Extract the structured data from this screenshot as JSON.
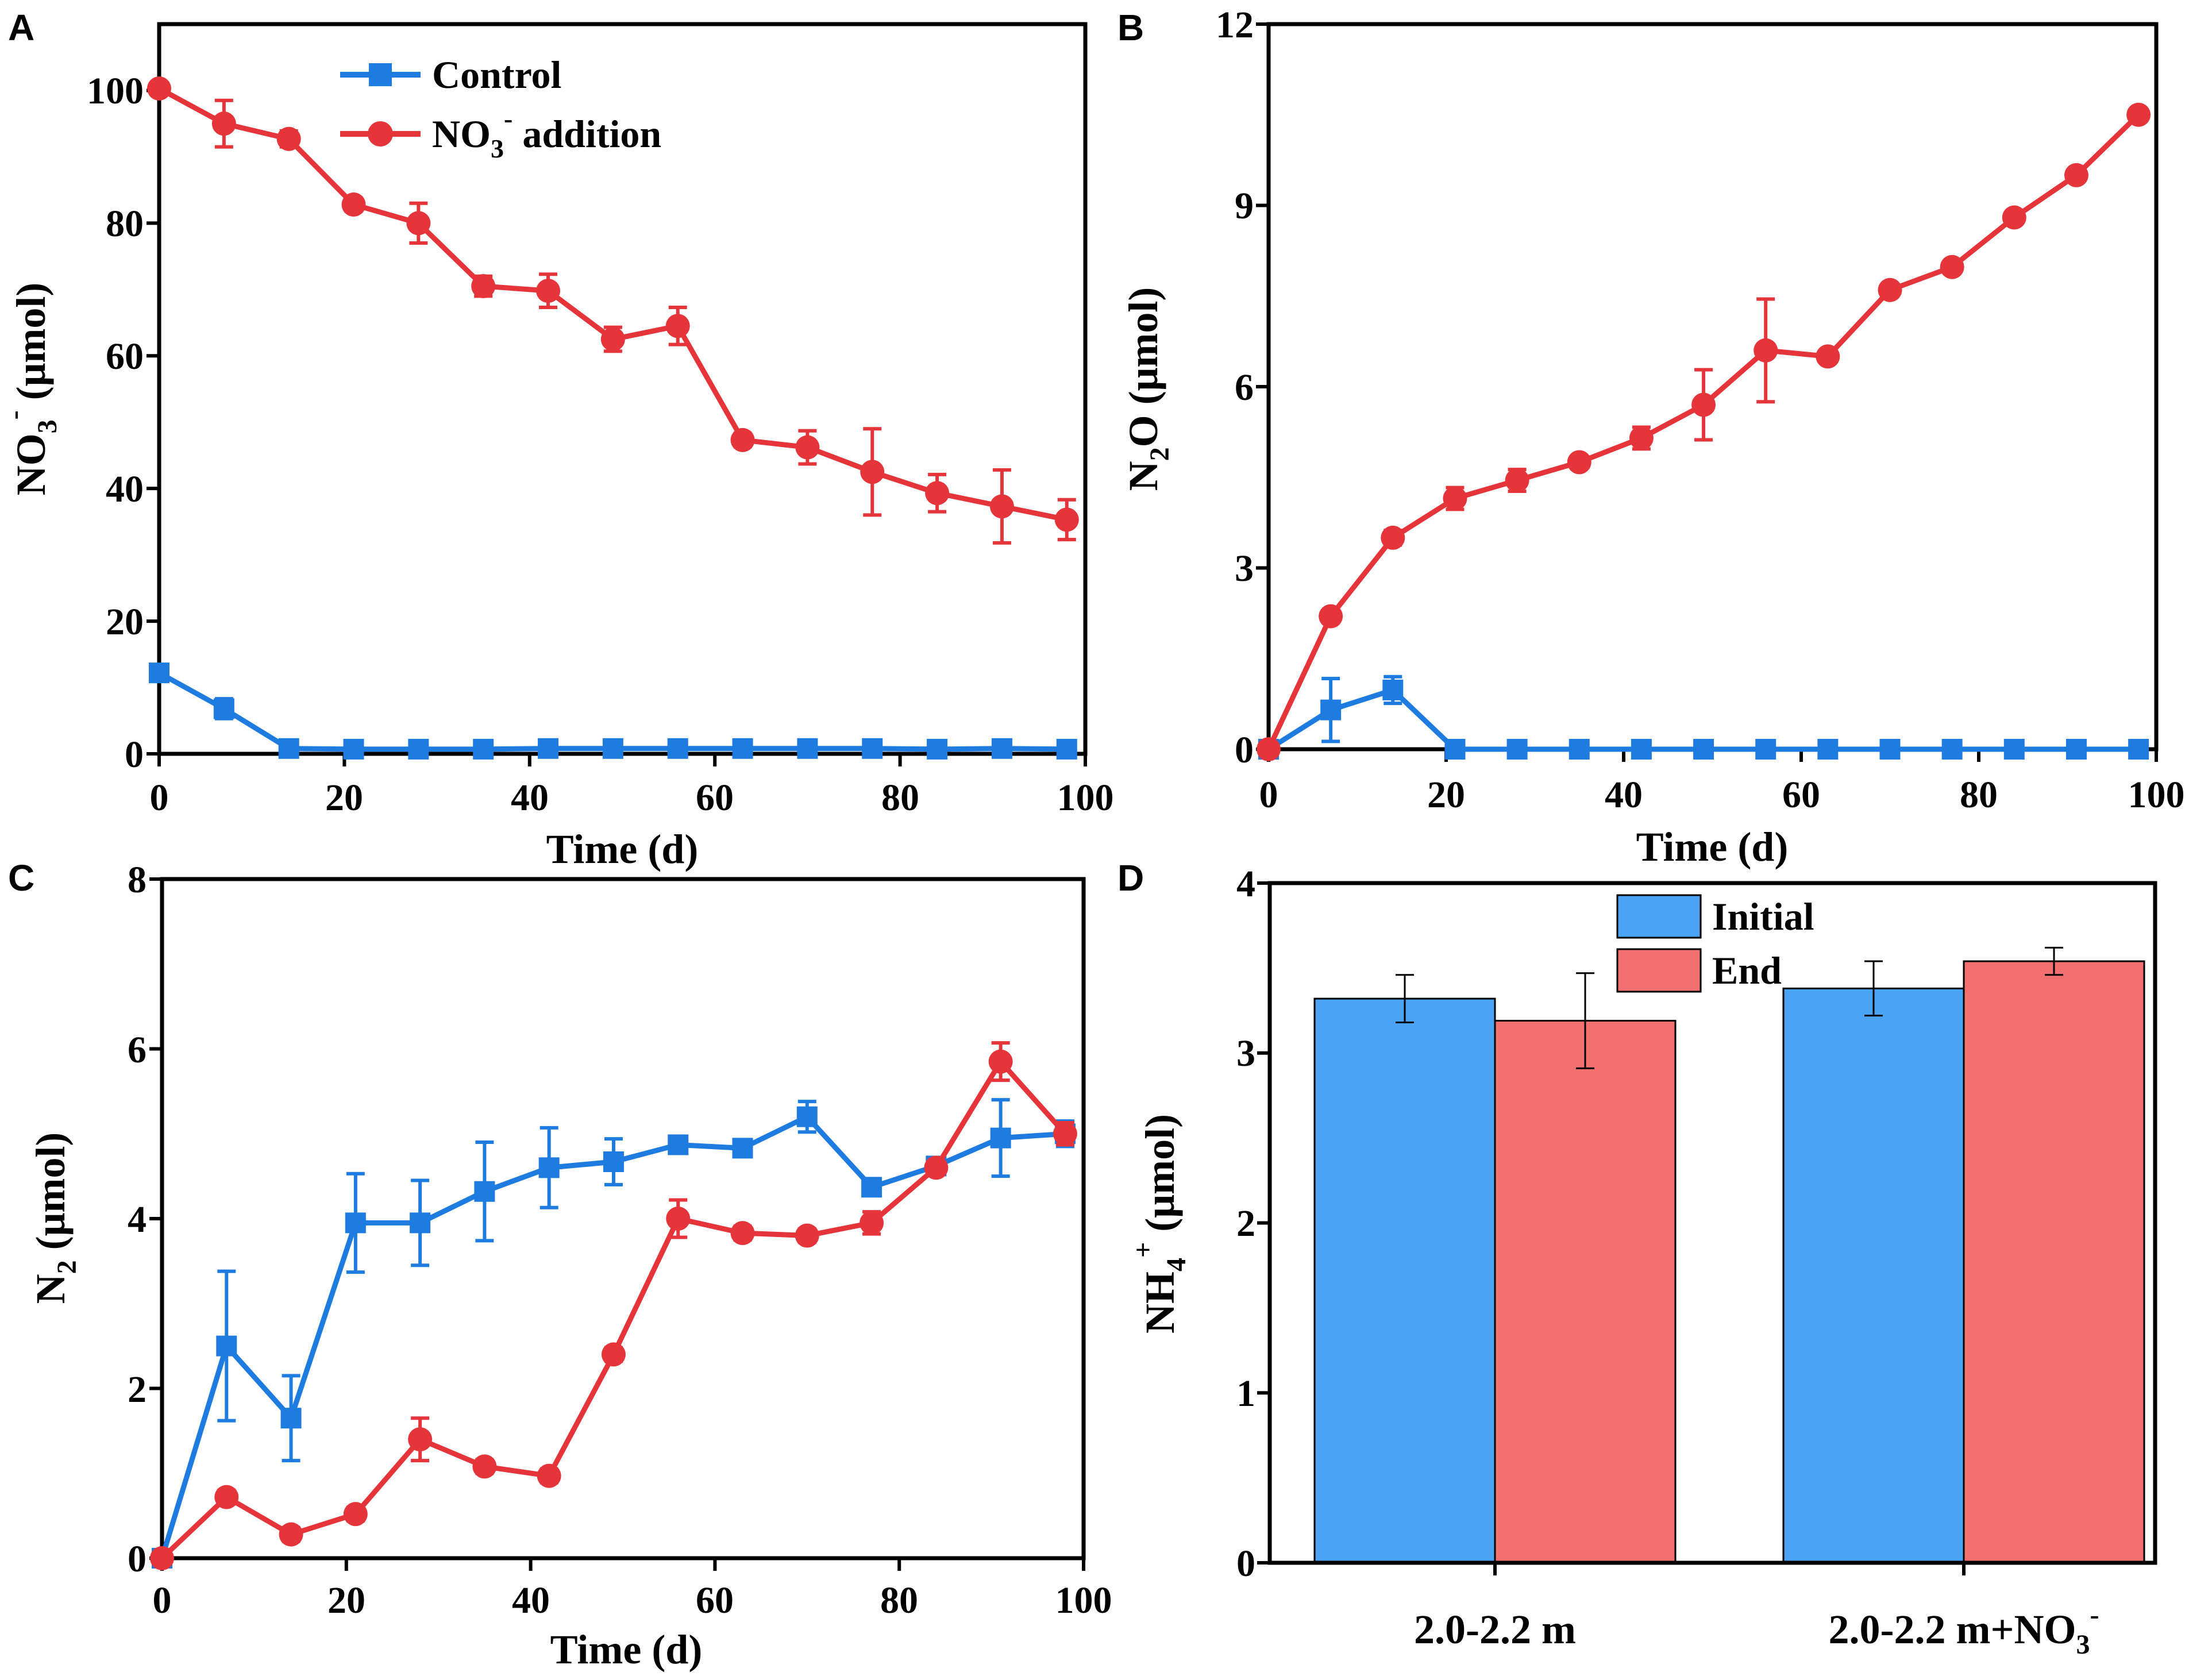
{
  "colors": {
    "control": "#1E7BE0",
    "nitrate": "#E5343A",
    "initial_bar": "#4BA3F5",
    "end_bar": "#F37070",
    "axis": "#000000"
  },
  "chart_data": [
    {
      "panel": "A",
      "type": "line",
      "xlabel": "Time (d)",
      "ylabel": {
        "base": "NO",
        "sub": "3",
        "sup": "-",
        "unit": " (μmol)"
      },
      "xlim": [
        0,
        100
      ],
      "ylim": [
        0,
        110
      ],
      "xticks": [
        "0",
        "20",
        "40",
        "60",
        "80",
        "100"
      ],
      "yticks": [
        "0",
        "20",
        "40",
        "60",
        "80",
        "100"
      ],
      "legend": {
        "position": "top-center",
        "entries": [
          {
            "label": "Control"
          },
          {
            "label_base": "NO",
            "label_sub": "3",
            "label_sup": "-",
            "label_rest": " addition"
          }
        ]
      },
      "series": [
        {
          "name": "Control",
          "color": "#1E7BE0",
          "marker": "square",
          "x": [
            0,
            7,
            14,
            21,
            28,
            35,
            42,
            49,
            56,
            63,
            70,
            77,
            84,
            91,
            98
          ],
          "y": [
            12.2,
            6.8,
            0.8,
            0.7,
            0.7,
            0.7,
            0.8,
            0.8,
            0.8,
            0.8,
            0.8,
            0.8,
            0.7,
            0.8,
            0.7
          ],
          "err": [
            1.2,
            1.5,
            0.4,
            0,
            0,
            0,
            0,
            0,
            0,
            0,
            0,
            0,
            0,
            0,
            0
          ]
        },
        {
          "name": "NO3- addition",
          "color": "#E5343A",
          "marker": "circle",
          "x": [
            0,
            7,
            14,
            21,
            28,
            35,
            42,
            49,
            56,
            63,
            70,
            77,
            84,
            91,
            98
          ],
          "y": [
            100.3,
            95,
            92.7,
            82.8,
            80,
            70.5,
            69.8,
            62.5,
            64.5,
            47.3,
            46.2,
            42.5,
            39.3,
            37.3,
            35.3
          ],
          "err": [
            0.8,
            3.5,
            1.2,
            1.0,
            3.0,
            1.5,
            2.5,
            1.8,
            2.8,
            1.0,
            2.5,
            6.5,
            2.8,
            5.5,
            3.0
          ]
        }
      ]
    },
    {
      "panel": "B",
      "type": "line",
      "xlabel": "Time (d)",
      "ylabel": {
        "base": "N",
        "sub": "2",
        "rest": "O",
        "unit": " (μmol)"
      },
      "xlim": [
        0,
        100
      ],
      "ylim": [
        0,
        12
      ],
      "xticks": [
        "0",
        "20",
        "40",
        "60",
        "80",
        "100"
      ],
      "yticks": [
        "0",
        "3",
        "6",
        "9",
        "12"
      ],
      "series": [
        {
          "name": "Control",
          "color": "#1E7BE0",
          "marker": "square",
          "x": [
            0,
            7,
            14,
            21,
            28,
            35,
            42,
            49,
            56,
            63,
            70,
            77,
            84,
            91,
            98
          ],
          "y": [
            0,
            0.65,
            0.98,
            0,
            0,
            0,
            0,
            0,
            0,
            0,
            0,
            0,
            0,
            0,
            0
          ],
          "err": [
            0,
            0.52,
            0.22,
            0,
            0,
            0,
            0,
            0,
            0,
            0,
            0,
            0,
            0,
            0,
            0
          ]
        },
        {
          "name": "NO3- addition",
          "color": "#E5343A",
          "marker": "circle",
          "x": [
            0,
            7,
            14,
            21,
            28,
            35,
            42,
            49,
            56,
            63,
            70,
            77,
            84,
            91,
            98
          ],
          "y": [
            0,
            2.2,
            3.5,
            4.15,
            4.45,
            4.75,
            5.15,
            5.7,
            6.6,
            6.5,
            7.6,
            7.98,
            8.8,
            9.5,
            10.5
          ],
          "err": [
            0,
            0.1,
            0.12,
            0.18,
            0.18,
            0.1,
            0.18,
            0.58,
            0.85,
            0.1,
            0.1,
            0.1,
            0.1,
            0.1,
            0.1
          ]
        }
      ]
    },
    {
      "panel": "C",
      "type": "line",
      "xlabel": "Time (d)",
      "ylabel": {
        "base": "N",
        "sub": "2",
        "unit": " (μmol)"
      },
      "xlim": [
        0,
        100
      ],
      "ylim": [
        0,
        8
      ],
      "xticks": [
        "0",
        "20",
        "40",
        "60",
        "80",
        "100"
      ],
      "yticks": [
        "0",
        "2",
        "4",
        "6",
        "8"
      ],
      "series": [
        {
          "name": "Control",
          "color": "#1E7BE0",
          "marker": "square",
          "x": [
            0,
            7,
            14,
            21,
            28,
            35,
            42,
            49,
            56,
            63,
            70,
            77,
            84,
            91,
            98
          ],
          "y": [
            0,
            2.5,
            1.65,
            3.95,
            3.95,
            4.32,
            4.6,
            4.67,
            4.87,
            4.83,
            5.2,
            4.37,
            4.62,
            4.95,
            5.0
          ],
          "err": [
            0,
            0.88,
            0.5,
            0.58,
            0.5,
            0.58,
            0.47,
            0.27,
            0.08,
            0.08,
            0.18,
            0.08,
            0.08,
            0.45,
            0.15
          ]
        },
        {
          "name": "NO3- addition",
          "color": "#E5343A",
          "marker": "circle",
          "x": [
            0,
            7,
            14,
            21,
            28,
            35,
            42,
            49,
            56,
            63,
            70,
            77,
            84,
            91,
            98
          ],
          "y": [
            0,
            0.72,
            0.28,
            0.52,
            1.4,
            1.08,
            0.97,
            2.4,
            4.0,
            3.83,
            3.8,
            3.95,
            4.6,
            5.85,
            5.0
          ],
          "err": [
            0,
            0.08,
            0.08,
            0.08,
            0.25,
            0.08,
            0.08,
            0.08,
            0.22,
            0.08,
            0.08,
            0.13,
            0.08,
            0.22,
            0.13
          ]
        }
      ]
    },
    {
      "panel": "D",
      "type": "bar",
      "xlabel": "",
      "ylabel": {
        "base": "NH",
        "sub": "4",
        "sup": "+",
        "unit": " (μmol)"
      },
      "ylim": [
        0,
        4
      ],
      "yticks": [
        "0",
        "1",
        "2",
        "3",
        "4"
      ],
      "categories": [
        {
          "base": "2.0-2.2 m"
        },
        {
          "base": "2.0-2.2 m+NO",
          "sub": "3",
          "sup": "-"
        }
      ],
      "legend": {
        "position": "top-center",
        "entries": [
          {
            "label": "Initial"
          },
          {
            "label": "End"
          }
        ]
      },
      "series": [
        {
          "name": "Initial",
          "color": "#4BA3F5",
          "values": [
            3.32,
            3.38
          ],
          "err": [
            0.14,
            0.16
          ]
        },
        {
          "name": "End",
          "color": "#F37070",
          "values": [
            3.19,
            3.54
          ],
          "err": [
            0.28,
            0.08
          ]
        }
      ]
    }
  ]
}
